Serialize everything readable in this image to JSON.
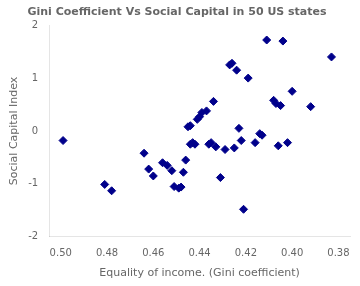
{
  "chart_data": {
    "type": "scatter",
    "title": "Gini Coefficient Vs Social Capital in 50 US states",
    "xlabel": "Equality of income. (Gini coefficient)",
    "ylabel": "Social Capital Index",
    "xlim": [
      0.505,
      0.375
    ],
    "ylim": [
      -2.0,
      2.0
    ],
    "xticks": [
      {
        "value": 0.5,
        "label": "0.50"
      },
      0.48,
      0.46,
      0.44,
      0.42,
      {
        "value": 0.4,
        "label": "0.40"
      },
      0.38
    ],
    "yticks": [
      -2,
      -1,
      0,
      1,
      2
    ],
    "color": "#00008B",
    "marker": "diamond",
    "grid": false,
    "x": [
      0.499,
      0.481,
      0.478,
      0.464,
      0.462,
      0.46,
      0.456,
      0.454,
      0.452,
      0.451,
      0.449,
      0.448,
      0.447,
      0.446,
      0.445,
      0.444,
      0.444,
      0.443,
      0.442,
      0.441,
      0.44,
      0.439,
      0.437,
      0.436,
      0.435,
      0.434,
      0.433,
      0.431,
      0.429,
      0.427,
      0.426,
      0.425,
      0.424,
      0.423,
      0.422,
      0.421,
      0.419,
      0.416,
      0.414,
      0.413,
      0.411,
      0.408,
      0.407,
      0.406,
      0.405,
      0.404,
      0.402,
      0.4,
      0.392,
      0.383
    ],
    "values": [
      -0.18,
      -1.01,
      -1.13,
      -0.42,
      -0.72,
      -0.85,
      -0.6,
      -0.65,
      -0.75,
      -1.05,
      -1.08,
      -1.06,
      -0.78,
      -0.55,
      0.08,
      0.1,
      -0.25,
      -0.22,
      -0.25,
      0.22,
      0.27,
      0.35,
      0.38,
      -0.25,
      -0.22,
      0.56,
      -0.3,
      -0.88,
      -0.35,
      1.25,
      1.28,
      -0.32,
      1.15,
      0.05,
      -0.18,
      -1.48,
      1.0,
      -0.22,
      -0.05,
      -0.08,
      1.72,
      0.58,
      0.52,
      -0.28,
      0.48,
      1.7,
      -0.22,
      0.75,
      0.46,
      1.4
    ]
  }
}
